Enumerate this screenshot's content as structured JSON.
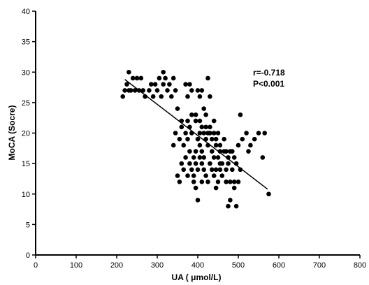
{
  "chart_data": {
    "type": "scatter",
    "title": "",
    "xlabel": "UA ( μmol/L)",
    "ylabel": "MoCA (Socre)",
    "xlim": [
      0,
      800
    ],
    "ylim": [
      0,
      40
    ],
    "xticks": [
      0,
      100,
      200,
      300,
      400,
      500,
      600,
      700,
      800
    ],
    "yticks": [
      0,
      5,
      10,
      15,
      20,
      25,
      30,
      35,
      40
    ],
    "annotations": [
      "r=-0.718",
      "P<0.001"
    ],
    "grid": false,
    "legend": "none",
    "marker_color": "#000000",
    "series": [
      {
        "points": [
          [
            215,
            26
          ],
          [
            220,
            27
          ],
          [
            225,
            28
          ],
          [
            230,
            30
          ],
          [
            230,
            27
          ],
          [
            235,
            27
          ],
          [
            240,
            29
          ],
          [
            245,
            27
          ],
          [
            250,
            29
          ],
          [
            255,
            27
          ],
          [
            260,
            29
          ],
          [
            265,
            27
          ],
          [
            270,
            26
          ],
          [
            280,
            27
          ],
          [
            285,
            28
          ],
          [
            290,
            26
          ],
          [
            295,
            28
          ],
          [
            300,
            27
          ],
          [
            305,
            29
          ],
          [
            310,
            26
          ],
          [
            315,
            28
          ],
          [
            315,
            30
          ],
          [
            320,
            29
          ],
          [
            325,
            27
          ],
          [
            330,
            28
          ],
          [
            335,
            26
          ],
          [
            340,
            29
          ],
          [
            345,
            27
          ],
          [
            340,
            18
          ],
          [
            345,
            20
          ],
          [
            350,
            24
          ],
          [
            355,
            19
          ],
          [
            360,
            21
          ],
          [
            365,
            18
          ],
          [
            370,
            20
          ],
          [
            375,
            19
          ],
          [
            380,
            17
          ],
          [
            385,
            20
          ],
          [
            390,
            16
          ],
          [
            395,
            17
          ],
          [
            400,
            19
          ],
          [
            405,
            18
          ],
          [
            410,
            17
          ],
          [
            415,
            16
          ],
          [
            420,
            19
          ],
          [
            425,
            18
          ],
          [
            430,
            21
          ],
          [
            435,
            17
          ],
          [
            440,
            16
          ],
          [
            445,
            18
          ],
          [
            450,
            16
          ],
          [
            455,
            17
          ],
          [
            460,
            15
          ],
          [
            465,
            19
          ],
          [
            470,
            17
          ],
          [
            475,
            16
          ],
          [
            480,
            17
          ],
          [
            485,
            14
          ],
          [
            350,
            13
          ],
          [
            355,
            12
          ],
          [
            360,
            15
          ],
          [
            365,
            14
          ],
          [
            370,
            16
          ],
          [
            375,
            13
          ],
          [
            380,
            15
          ],
          [
            385,
            14
          ],
          [
            390,
            13
          ],
          [
            395,
            15
          ],
          [
            400,
            14
          ],
          [
            405,
            16
          ],
          [
            410,
            15
          ],
          [
            415,
            14
          ],
          [
            420,
            13
          ],
          [
            425,
            12
          ],
          [
            430,
            15
          ],
          [
            435,
            14
          ],
          [
            440,
            13
          ],
          [
            445,
            14
          ],
          [
            450,
            12
          ],
          [
            455,
            15
          ],
          [
            460,
            13
          ],
          [
            470,
            12
          ],
          [
            475,
            8
          ],
          [
            480,
            9
          ],
          [
            490,
            12
          ],
          [
            495,
            8
          ],
          [
            500,
            12
          ],
          [
            505,
            14
          ],
          [
            370,
            28
          ],
          [
            375,
            26
          ],
          [
            380,
            28
          ],
          [
            385,
            27
          ],
          [
            395,
            23
          ],
          [
            400,
            27
          ],
          [
            405,
            26
          ],
          [
            410,
            27
          ],
          [
            415,
            24
          ],
          [
            420,
            23
          ],
          [
            425,
            29
          ],
          [
            430,
            26
          ],
          [
            440,
            22
          ],
          [
            360,
            22
          ],
          [
            375,
            22
          ],
          [
            380,
            21
          ],
          [
            385,
            23
          ],
          [
            395,
            22
          ],
          [
            405,
            22
          ],
          [
            410,
            21
          ],
          [
            420,
            21
          ],
          [
            430,
            20
          ],
          [
            440,
            20
          ],
          [
            450,
            20
          ],
          [
            400,
            9
          ],
          [
            405,
            20
          ],
          [
            415,
            20
          ],
          [
            425,
            20
          ],
          [
            435,
            19
          ],
          [
            445,
            19
          ],
          [
            455,
            18
          ],
          [
            465,
            17
          ],
          [
            470,
            14
          ],
          [
            475,
            15
          ],
          [
            485,
            17
          ],
          [
            490,
            16
          ],
          [
            495,
            15
          ],
          [
            500,
            18
          ],
          [
            505,
            23
          ],
          [
            510,
            19
          ],
          [
            520,
            20
          ],
          [
            525,
            17
          ],
          [
            530,
            18
          ],
          [
            540,
            19
          ],
          [
            550,
            20
          ],
          [
            560,
            16
          ],
          [
            565,
            20
          ],
          [
            575,
            10
          ],
          [
            390,
            12
          ],
          [
            395,
            11
          ],
          [
            410,
            12
          ],
          [
            445,
            11
          ],
          [
            455,
            14
          ],
          [
            480,
            12
          ],
          [
            490,
            11
          ]
        ]
      }
    ],
    "fit_line": {
      "x": [
        220,
        572
      ],
      "y": [
        28.8,
        10.8
      ]
    }
  }
}
